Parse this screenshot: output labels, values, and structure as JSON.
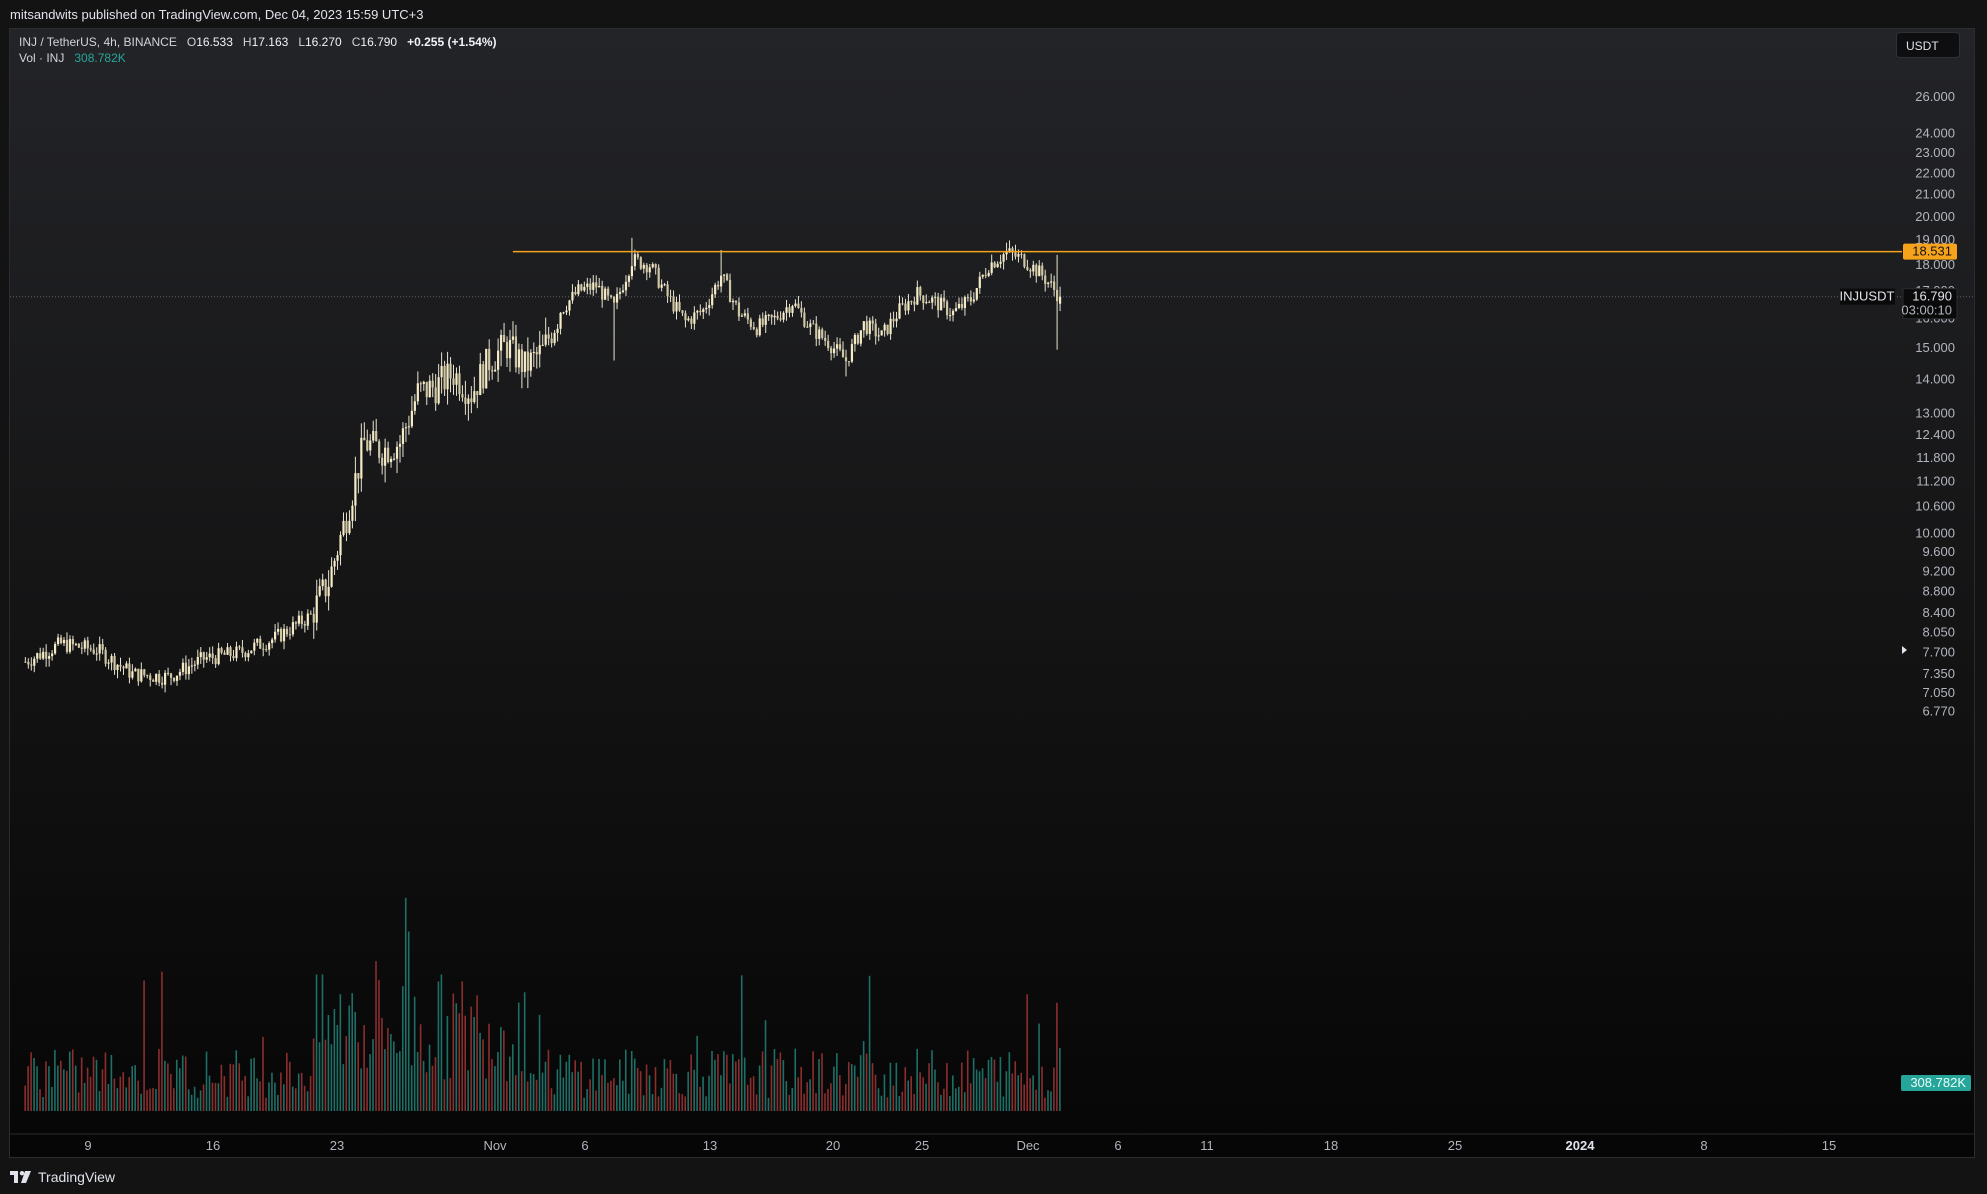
{
  "header": {
    "published": "mitsandwits published on TradingView.com, Dec 04, 2023 15:59 UTC+3"
  },
  "legend": {
    "symbol": "INJ / TetherUS, 4h, BINANCE",
    "open_label": "O",
    "open": "16.533",
    "high_label": "H",
    "high": "17.163",
    "low_label": "L",
    "low": "16.270",
    "close_label": "C",
    "close": "16.790",
    "change": "+0.255 (+1.54%)",
    "volume_label": "Vol · INJ",
    "volume": "308.782K"
  },
  "currency_button": "USDT",
  "footer": {
    "brand": "TradingView"
  },
  "colors": {
    "background": "#131313",
    "candle": "#f5ecc7",
    "wick": "#e9e4d0",
    "resistance": "#f7a21b",
    "volume_up": "#1e6f66",
    "volume_down": "#8b2e2e",
    "volume_badge": "#26a69a",
    "price_line": "#5d606b"
  },
  "chart_data": {
    "type": "candlestick",
    "title": "INJ / TetherUS, 4h, BINANCE",
    "y_scale": "log",
    "ylim": [
      6.5,
      28
    ],
    "y_ticks": [
      "26.000",
      "24.000",
      "23.000",
      "22.000",
      "21.000",
      "20.000",
      "19.000",
      "18.000",
      "17.000",
      "16.000",
      "15.000",
      "14.000",
      "13.000",
      "12.400",
      "11.800",
      "11.200",
      "10.600",
      "10.000",
      "9.600",
      "9.200",
      "8.800",
      "8.400",
      "8.050",
      "7.700",
      "7.350",
      "7.050",
      "6.770"
    ],
    "x_ticks": [
      "9",
      "16",
      "23",
      "Nov",
      "6",
      "13",
      "20",
      "25",
      "Dec",
      "6",
      "11",
      "18",
      "25",
      "2024",
      "8",
      "15"
    ],
    "x_ticks_bold": [
      "2024"
    ],
    "trend_closes": [
      [
        "Oct 07",
        7.55
      ],
      [
        "Oct 09",
        7.85
      ],
      [
        "Oct 11",
        7.75
      ],
      [
        "Oct 13",
        7.35
      ],
      [
        "Oct 15",
        7.3
      ],
      [
        "Oct 17",
        7.6
      ],
      [
        "Oct 19",
        7.7
      ],
      [
        "Oct 21",
        7.95
      ],
      [
        "Oct 23",
        8.35
      ],
      [
        "Oct 24",
        9.0
      ],
      [
        "Oct 25",
        10.4
      ],
      [
        "Oct 26",
        12.2
      ],
      [
        "Oct 27",
        12.0
      ],
      [
        "Oct 28",
        12.2
      ],
      [
        "Oct 29",
        13.6
      ],
      [
        "Oct 30",
        13.8
      ],
      [
        "Oct 31",
        14.2
      ],
      [
        "Nov 01",
        13.6
      ],
      [
        "Nov 02",
        14.6
      ],
      [
        "Nov 03",
        15.1
      ],
      [
        "Nov 04",
        14.4
      ],
      [
        "Nov 05",
        14.9
      ],
      [
        "Nov 06",
        16.3
      ],
      [
        "Nov 07",
        17.0
      ],
      [
        "Nov 08",
        17.2
      ],
      [
        "Nov 09",
        16.4
      ],
      [
        "Nov 10",
        18.2
      ],
      [
        "Nov 11",
        18.0
      ],
      [
        "Nov 12",
        16.8
      ],
      [
        "Nov 13",
        15.9
      ],
      [
        "Nov 14",
        16.3
      ],
      [
        "Nov 15",
        17.6
      ],
      [
        "Nov 16",
        16.2
      ],
      [
        "Nov 17",
        15.7
      ],
      [
        "Nov 18",
        16.0
      ],
      [
        "Nov 19",
        16.6
      ],
      [
        "Nov 20",
        15.7
      ],
      [
        "Nov 21",
        15.2
      ],
      [
        "Nov 22",
        14.6
      ],
      [
        "Nov 23",
        15.8
      ],
      [
        "Nov 24",
        15.4
      ],
      [
        "Nov 25",
        16.3
      ],
      [
        "Nov 26",
        16.9
      ],
      [
        "Nov 27",
        16.6
      ],
      [
        "Nov 28",
        16.2
      ],
      [
        "Nov 29",
        16.7
      ],
      [
        "Nov 30",
        18.0
      ],
      [
        "Dec 01",
        18.5
      ],
      [
        "Dec 02",
        18.2
      ],
      [
        "Dec 03",
        17.6
      ],
      [
        "Dec 04",
        16.79
      ]
    ],
    "resistance_level": 18.531,
    "resistance_label": "18.531",
    "last_price": 16.79,
    "last_price_label": "16.790",
    "symbol_tag": "INJUSDT",
    "countdown": "03:00:10",
    "volume_last_label": "308.782K",
    "volume_peak": 2.0
  }
}
